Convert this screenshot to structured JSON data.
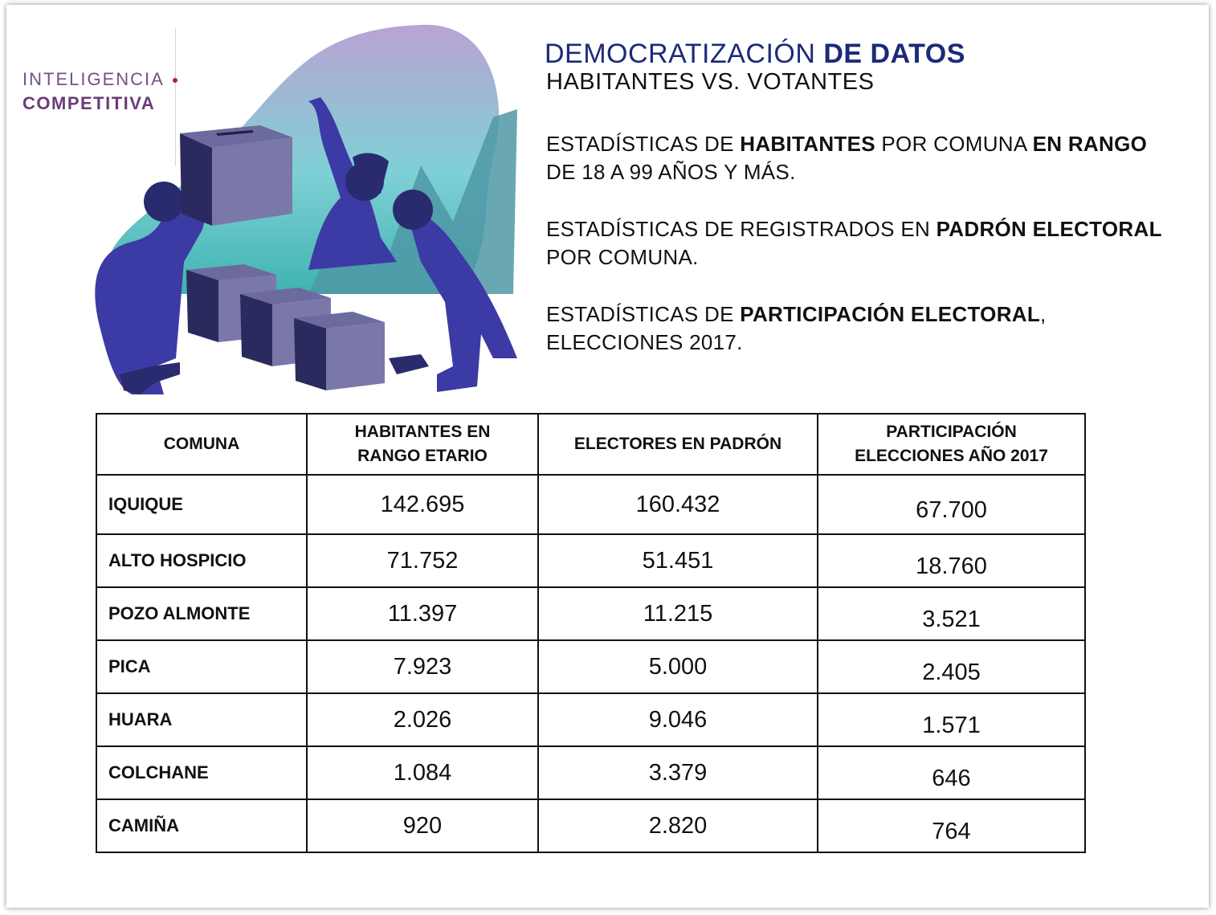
{
  "logo": {
    "line1": "INTELIGENCIA",
    "line2": "COMPETITIVA"
  },
  "title": {
    "regular": "DEMOCRATIZACIÓN ",
    "bold": "DE DATOS"
  },
  "subtitle": "HABITANTES VS. VOTANTES",
  "paragraphs": {
    "p1": {
      "t1": "ESTADÍSTICAS DE ",
      "b1": "HABITANTES",
      "t2": " POR COMUNA ",
      "b2": "EN RANGO",
      "t3": " DE 18 A 99 AÑOS Y MÁS."
    },
    "p2": {
      "t1": "ESTADÍSTICAS DE REGISTRADOS EN ",
      "b1": "PADRÓN ELECTORAL",
      "t2": " POR COMUNA."
    },
    "p3": {
      "t1": "ESTADÍSTICAS DE ",
      "b1": "PARTICIPACIÓN ELECTORAL",
      "t2": ", ELECCIONES 2017."
    }
  },
  "table": {
    "headers": [
      "COMUNA",
      "HABITANTES EN RANGO ETARIO",
      "ELECTORES EN PADRÓN",
      "PARTICIPACIÓN ELECCIONES AÑO 2017"
    ],
    "rows": [
      [
        "IQUIQUE",
        "142.695",
        "160.432",
        "67.700"
      ],
      [
        "ALTO HOSPICIO",
        "71.752",
        "51.451",
        "18.760"
      ],
      [
        "POZO ALMONTE",
        "11.397",
        "11.215",
        "3.521"
      ],
      [
        "PICA",
        "7.923",
        "5.000",
        "2.405"
      ],
      [
        "HUARA",
        "2.026",
        "9.046",
        "1.571"
      ],
      [
        "COLCHANE",
        "1.084",
        "3.379",
        "646"
      ],
      [
        "CAMIÑA",
        "920",
        "2.820",
        "764"
      ]
    ]
  }
}
